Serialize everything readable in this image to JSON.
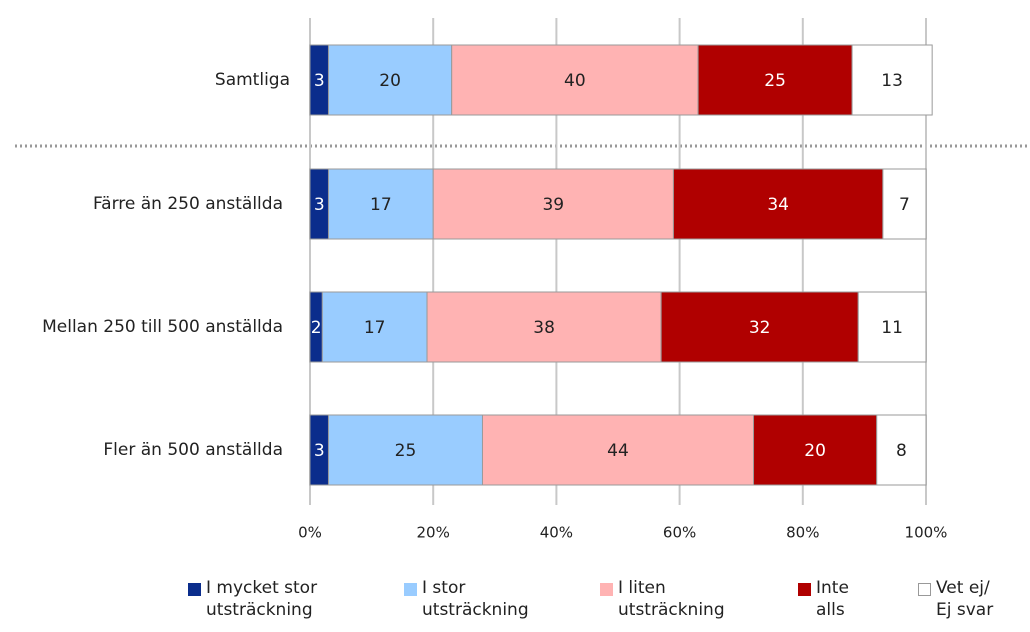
{
  "chart_data": {
    "type": "stacked-bar-horizontal",
    "categories": [
      "Samtliga",
      "Färre än 250 anställda",
      "Mellan 250 till 500 anställda",
      "Fler än 500 anställda"
    ],
    "series": [
      {
        "name": "I mycket stor utsträckning",
        "color": "#0b2d8c",
        "values": [
          3,
          3,
          2,
          3
        ]
      },
      {
        "name": "I stor utsträckning",
        "color": "#99ccff",
        "values": [
          20,
          17,
          17,
          25
        ]
      },
      {
        "name": "I liten utsträckning",
        "color": "#ffb3b3",
        "values": [
          40,
          39,
          38,
          44
        ]
      },
      {
        "name": "Inte alls",
        "color": "#b00000",
        "values": [
          25,
          34,
          32,
          20
        ]
      },
      {
        "name": "Vet ej/ Ej svar",
        "color": "#ffffff",
        "values": [
          13,
          7,
          11,
          8
        ]
      }
    ],
    "xlim": [
      0,
      100
    ],
    "xticks": [
      {
        "value": 0,
        "label": "0%"
      },
      {
        "value": 20,
        "label": "20%"
      },
      {
        "value": 40,
        "label": "40%"
      },
      {
        "value": 60,
        "label": "60%"
      },
      {
        "value": 80,
        "label": "80%"
      },
      {
        "value": 100,
        "label": "100%"
      }
    ],
    "grid": true,
    "legend": "bottom"
  }
}
